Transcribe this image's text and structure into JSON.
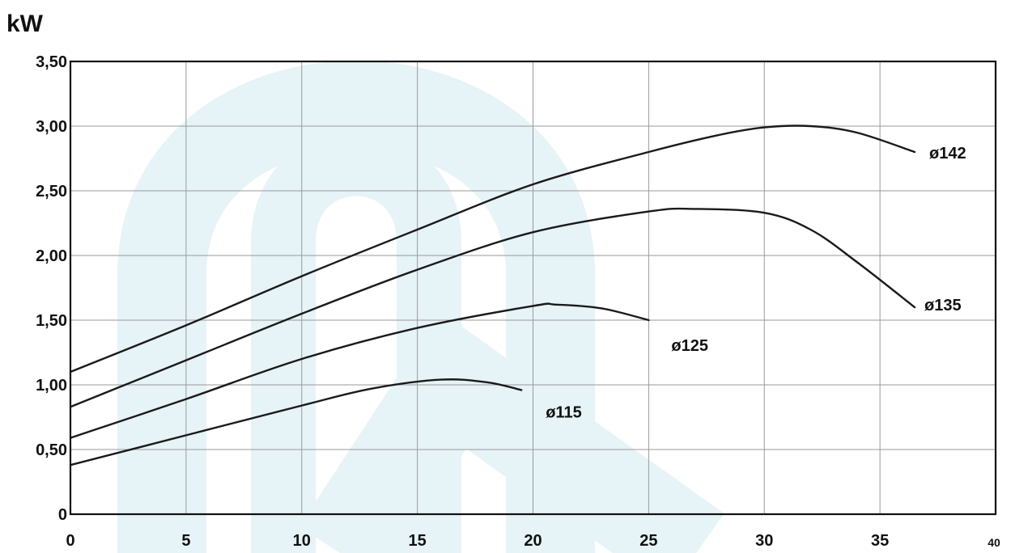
{
  "chart_data": {
    "type": "line",
    "ylabel": "kW",
    "xlim": [
      0,
      40
    ],
    "ylim": [
      0,
      3.5
    ],
    "grid": true,
    "x_ticks": [
      {
        "value": 0,
        "label": "0"
      },
      {
        "value": 5,
        "label": "5"
      },
      {
        "value": 10,
        "label": "10"
      },
      {
        "value": 15,
        "label": "15"
      },
      {
        "value": 20,
        "label": "20"
      },
      {
        "value": 25,
        "label": "25"
      },
      {
        "value": 30,
        "label": "30"
      },
      {
        "value": 35,
        "label": "35"
      },
      {
        "value": 40,
        "label": "40"
      }
    ],
    "y_ticks": [
      {
        "value": 0,
        "label": "0"
      },
      {
        "value": 0.5,
        "label": "0,50"
      },
      {
        "value": 1.0,
        "label": "1,00"
      },
      {
        "value": 1.5,
        "label": "1,50"
      },
      {
        "value": 2.0,
        "label": "2,00"
      },
      {
        "value": 2.5,
        "label": "2,50"
      },
      {
        "value": 3.0,
        "label": "3,00"
      },
      {
        "value": 3.5,
        "label": "3,50"
      }
    ],
    "series": [
      {
        "name": "ø142",
        "x": [
          0,
          5,
          10,
          15,
          20,
          25,
          28,
          30,
          32,
          34,
          36.5
        ],
        "y": [
          1.1,
          1.46,
          1.84,
          2.2,
          2.55,
          2.8,
          2.93,
          2.99,
          3.0,
          2.95,
          2.8
        ]
      },
      {
        "name": "ø135",
        "x": [
          0,
          5,
          10,
          15,
          20,
          25,
          27,
          30,
          32,
          34,
          36.5
        ],
        "y": [
          0.83,
          1.19,
          1.55,
          1.89,
          2.18,
          2.34,
          2.36,
          2.33,
          2.2,
          1.95,
          1.6
        ]
      },
      {
        "name": "ø125",
        "x": [
          0,
          5,
          10,
          15,
          20,
          21,
          23,
          25
        ],
        "y": [
          0.59,
          0.89,
          1.2,
          1.44,
          1.61,
          1.62,
          1.59,
          1.5
        ]
      },
      {
        "name": "ø115",
        "x": [
          0,
          5,
          10,
          13,
          16,
          18,
          19.5
        ],
        "y": [
          0.38,
          0.61,
          0.84,
          0.97,
          1.04,
          1.02,
          0.96
        ]
      }
    ]
  }
}
